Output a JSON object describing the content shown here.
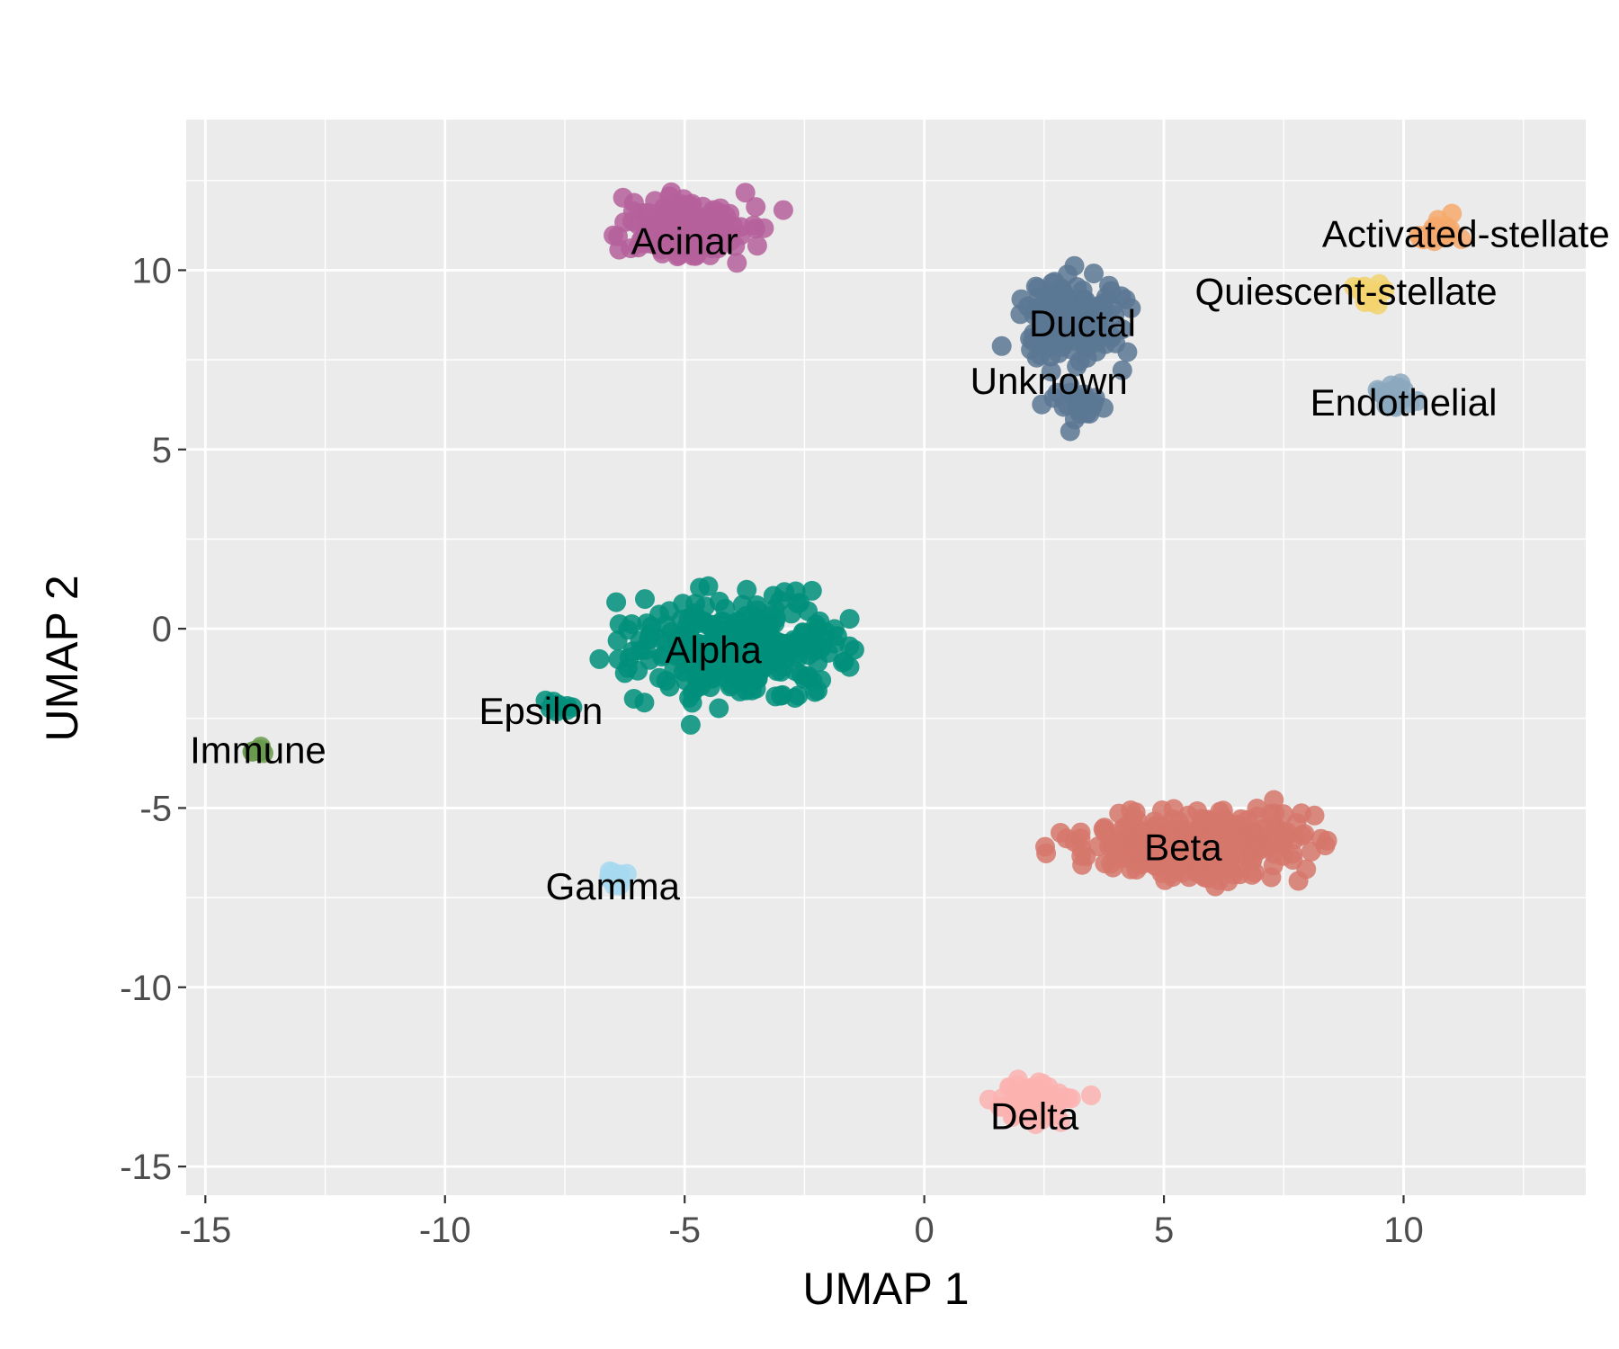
{
  "chart_data": {
    "type": "scatter",
    "title": "",
    "xlabel": "UMAP 1",
    "ylabel": "UMAP 2",
    "xlim": [
      -15.4,
      13.8
    ],
    "ylim": [
      -15.8,
      14.2
    ],
    "x_ticks": [
      -15,
      -10,
      -5,
      0,
      5,
      10
    ],
    "x_tick_labels": [
      "-15",
      "-10",
      "-5",
      "0",
      "5",
      "10"
    ],
    "y_ticks": [
      -15,
      -10,
      -5,
      0,
      5,
      10
    ],
    "y_tick_labels": [
      "-15",
      "-10",
      "-5",
      "0",
      "5",
      "10"
    ],
    "grid": true,
    "legend": "none",
    "panel_background": "#ebebeb",
    "clusters": [
      {
        "name": "Acinar",
        "color": "#b5609b",
        "center": [
          -5.0,
          11.2
        ],
        "spread": [
          1.6,
          0.9
        ],
        "n": 170,
        "label_pos": [
          -5.0,
          10.8
        ]
      },
      {
        "name": "Ductal",
        "color": "#5b7793",
        "center": [
          3.1,
          8.6
        ],
        "spread": [
          1.1,
          1.3
        ],
        "n": 150,
        "label_pos": [
          3.3,
          8.5
        ]
      },
      {
        "name": "Unknown",
        "color": "#5b7793",
        "center": [
          3.2,
          6.3
        ],
        "spread": [
          0.6,
          0.6
        ],
        "n": 25,
        "label_pos": [
          2.6,
          6.9
        ]
      },
      {
        "name": "Activated-stellate",
        "color": "#f6a96c",
        "center": [
          10.8,
          11.0
        ],
        "spread": [
          0.5,
          0.4
        ],
        "n": 25,
        "label_pos": [
          11.3,
          11.0
        ]
      },
      {
        "name": "Quiescent-stellate",
        "color": "#f3d36f",
        "center": [
          9.2,
          9.3
        ],
        "spread": [
          0.4,
          0.5
        ],
        "n": 14,
        "label_pos": [
          8.8,
          9.4
        ]
      },
      {
        "name": "Endothelial",
        "color": "#8ba8be",
        "center": [
          9.8,
          6.5
        ],
        "spread": [
          0.5,
          0.5
        ],
        "n": 25,
        "label_pos": [
          10.0,
          6.3
        ]
      },
      {
        "name": "Alpha",
        "color": "#008f7a",
        "center": [
          -4.0,
          -0.6
        ],
        "spread": [
          2.5,
          1.6
        ],
        "n": 320,
        "label_pos": [
          -4.4,
          -0.6
        ]
      },
      {
        "name": "Epsilon",
        "color": "#008f7a",
        "center": [
          -7.6,
          -2.1
        ],
        "spread": [
          0.3,
          0.2
        ],
        "n": 8,
        "label_pos": [
          -8.0,
          -2.3
        ]
      },
      {
        "name": "Immune",
        "color": "#6a9a4e",
        "center": [
          -13.9,
          -3.4
        ],
        "spread": [
          0.2,
          0.2
        ],
        "n": 8,
        "label_pos": [
          -13.9,
          -3.4
        ]
      },
      {
        "name": "Gamma",
        "color": "#a7d9f0",
        "center": [
          -6.5,
          -7.0
        ],
        "spread": [
          0.3,
          0.4
        ],
        "n": 14,
        "label_pos": [
          -6.5,
          -7.2
        ]
      },
      {
        "name": "Beta",
        "color": "#d6776b",
        "center": [
          5.5,
          -6.0
        ],
        "spread": [
          2.6,
          1.1
        ],
        "n": 300,
        "label_pos": [
          5.4,
          -6.1
        ]
      },
      {
        "name": "Delta",
        "color": "#fbb3b0",
        "center": [
          2.3,
          -13.1
        ],
        "spread": [
          0.9,
          0.6
        ],
        "n": 60,
        "label_pos": [
          2.3,
          -13.6
        ]
      }
    ]
  }
}
